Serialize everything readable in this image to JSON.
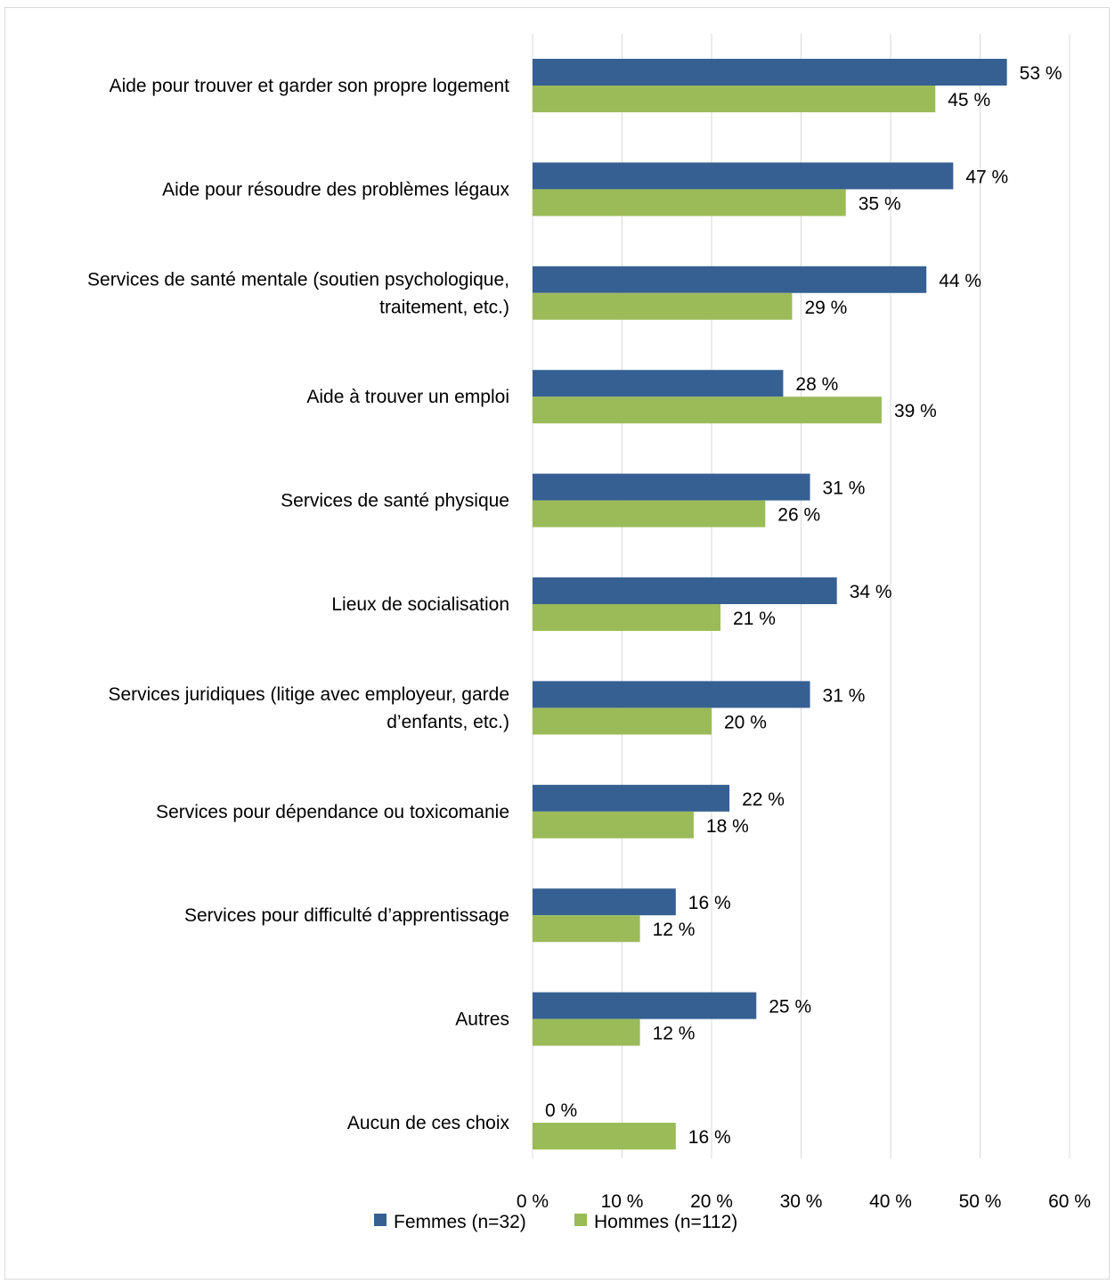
{
  "chart_data": {
    "type": "bar",
    "orientation": "horizontal",
    "categories": [
      [
        "Aide pour trouver et garder son propre logement"
      ],
      [
        "Aide pour résoudre des problèmes légaux"
      ],
      [
        "Services de santé mentale (soutien psychologique,",
        "traitement, etc.)"
      ],
      [
        "Aide à trouver un emploi"
      ],
      [
        "Services de santé physique"
      ],
      [
        "Lieux de socialisation"
      ],
      [
        "Services juridiques (litige avec employeur, garde",
        "d’enfants, etc.)"
      ],
      [
        "Services pour dépendance ou toxicomanie"
      ],
      [
        "Services pour difficulté d’apprentissage"
      ],
      [
        "Autres"
      ],
      [
        "Aucun de ces choix"
      ]
    ],
    "series": [
      {
        "name": "Femmes (n=32)",
        "color": "#366092",
        "values": [
          53,
          47,
          44,
          28,
          31,
          34,
          31,
          22,
          16,
          25,
          0
        ],
        "labels": [
          "53 %",
          "47 %",
          "44 %",
          "28 %",
          "31 %",
          "34 %",
          "31 %",
          "22 %",
          "16 %",
          "25 %",
          "0 %"
        ]
      },
      {
        "name": "Hommes (n=112)",
        "color": "#9bbb59",
        "values": [
          45,
          35,
          29,
          39,
          26,
          21,
          20,
          18,
          12,
          12,
          16
        ],
        "labels": [
          "45 %",
          "35 %",
          "29 %",
          "39 %",
          "26 %",
          "21 %",
          "20 %",
          "18 %",
          "12 %",
          "12 %",
          "16 %"
        ]
      }
    ],
    "xlim": [
      0,
      60
    ],
    "xticks": [
      0,
      10,
      20,
      30,
      40,
      50,
      60
    ],
    "xtick_labels": [
      "0 %",
      "10 %",
      "20 %",
      "30 %",
      "40 %",
      "50 %",
      "60 %"
    ],
    "grid": "vertical",
    "legend_position": "bottom"
  }
}
